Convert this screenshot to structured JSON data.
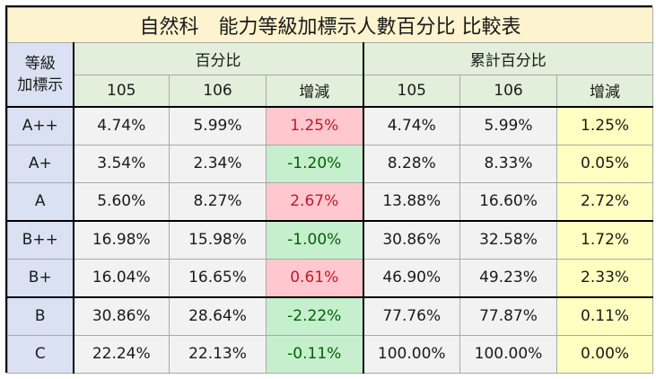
{
  "title": "自然科　能力等級加標示人數百分比 比較表",
  "header": {
    "corner_line1": "等級",
    "corner_line2": "加標示",
    "group1": "百分比",
    "group2": "累計百分比",
    "sub": [
      "105",
      "106",
      "增減",
      "105",
      "106",
      "增減"
    ]
  },
  "rows": [
    {
      "grade": "A++",
      "p105": "4.74%",
      "p106": "5.99%",
      "pdiff": "1.25%",
      "c105": "4.74%",
      "c106": "5.99%",
      "cdiff": "1.25%"
    },
    {
      "grade": "A+",
      "p105": "3.54%",
      "p106": "2.34%",
      "pdiff": "-1.20%",
      "c105": "8.28%",
      "c106": "8.33%",
      "cdiff": "0.05%"
    },
    {
      "grade": "A",
      "p105": "5.60%",
      "p106": "8.27%",
      "pdiff": "2.67%",
      "c105": "13.88%",
      "c106": "16.60%",
      "cdiff": "2.72%"
    },
    {
      "grade": "B++",
      "p105": "16.98%",
      "p106": "15.98%",
      "pdiff": "-1.00%",
      "c105": "30.86%",
      "c106": "32.58%",
      "cdiff": "1.72%"
    },
    {
      "grade": "B+",
      "p105": "16.04%",
      "p106": "16.65%",
      "pdiff": "0.61%",
      "c105": "46.90%",
      "c106": "49.23%",
      "cdiff": "2.33%"
    },
    {
      "grade": "B",
      "p105": "30.86%",
      "p106": "28.64%",
      "pdiff": "-2.22%",
      "c105": "77.76%",
      "c106": "77.87%",
      "cdiff": "0.11%"
    },
    {
      "grade": "C",
      "p105": "22.24%",
      "p106": "22.13%",
      "pdiff": "-0.11%",
      "c105": "100.00%",
      "c106": "100.00%",
      "cdiff": "0.00%"
    }
  ],
  "colors": {
    "title_bg": "#fdf4cf",
    "header_bg": "#e2efda",
    "row_header_bg": "#d9e1f2",
    "increase_bg": "#ffc7ce",
    "increase_text": "#c0182d",
    "decrease_bg": "#c6efce",
    "decrease_text": "#006100",
    "cumulative_diff_bg": "#ffffc1"
  }
}
